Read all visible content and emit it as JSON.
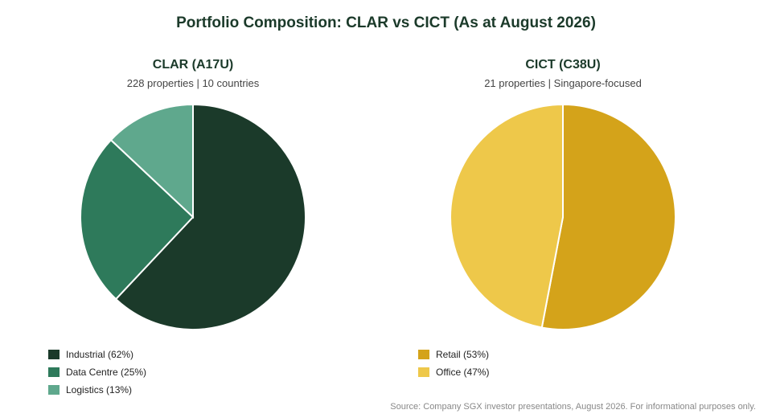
{
  "title": "Portfolio Composition: CLAR vs CICT (As at August 2026)",
  "source": "Source: Company SGX investor presentations, August 2026. For informational purposes only.",
  "chart_data": [
    {
      "type": "pie",
      "title": "CLAR (A17U)",
      "subtitle": "228 properties | 10 countries",
      "slices": [
        {
          "label": "Industrial",
          "value": 62,
          "color": "#1b3a2a",
          "legend": "Industrial (62%)"
        },
        {
          "label": "Data Centre",
          "value": 25,
          "color": "#2e7a5b",
          "legend": "Data Centre (25%)"
        },
        {
          "label": "Logistics",
          "value": 13,
          "color": "#5fa88d",
          "legend": "Logistics (13%)"
        }
      ]
    },
    {
      "type": "pie",
      "title": "CICT (C38U)",
      "subtitle": "21 properties | Singapore-focused",
      "slices": [
        {
          "label": "Retail",
          "value": 53,
          "color": "#d4a31a",
          "legend": "Retail (53%)"
        },
        {
          "label": "Office",
          "value": 47,
          "color": "#eec84a",
          "legend": "Office (47%)"
        }
      ]
    }
  ]
}
